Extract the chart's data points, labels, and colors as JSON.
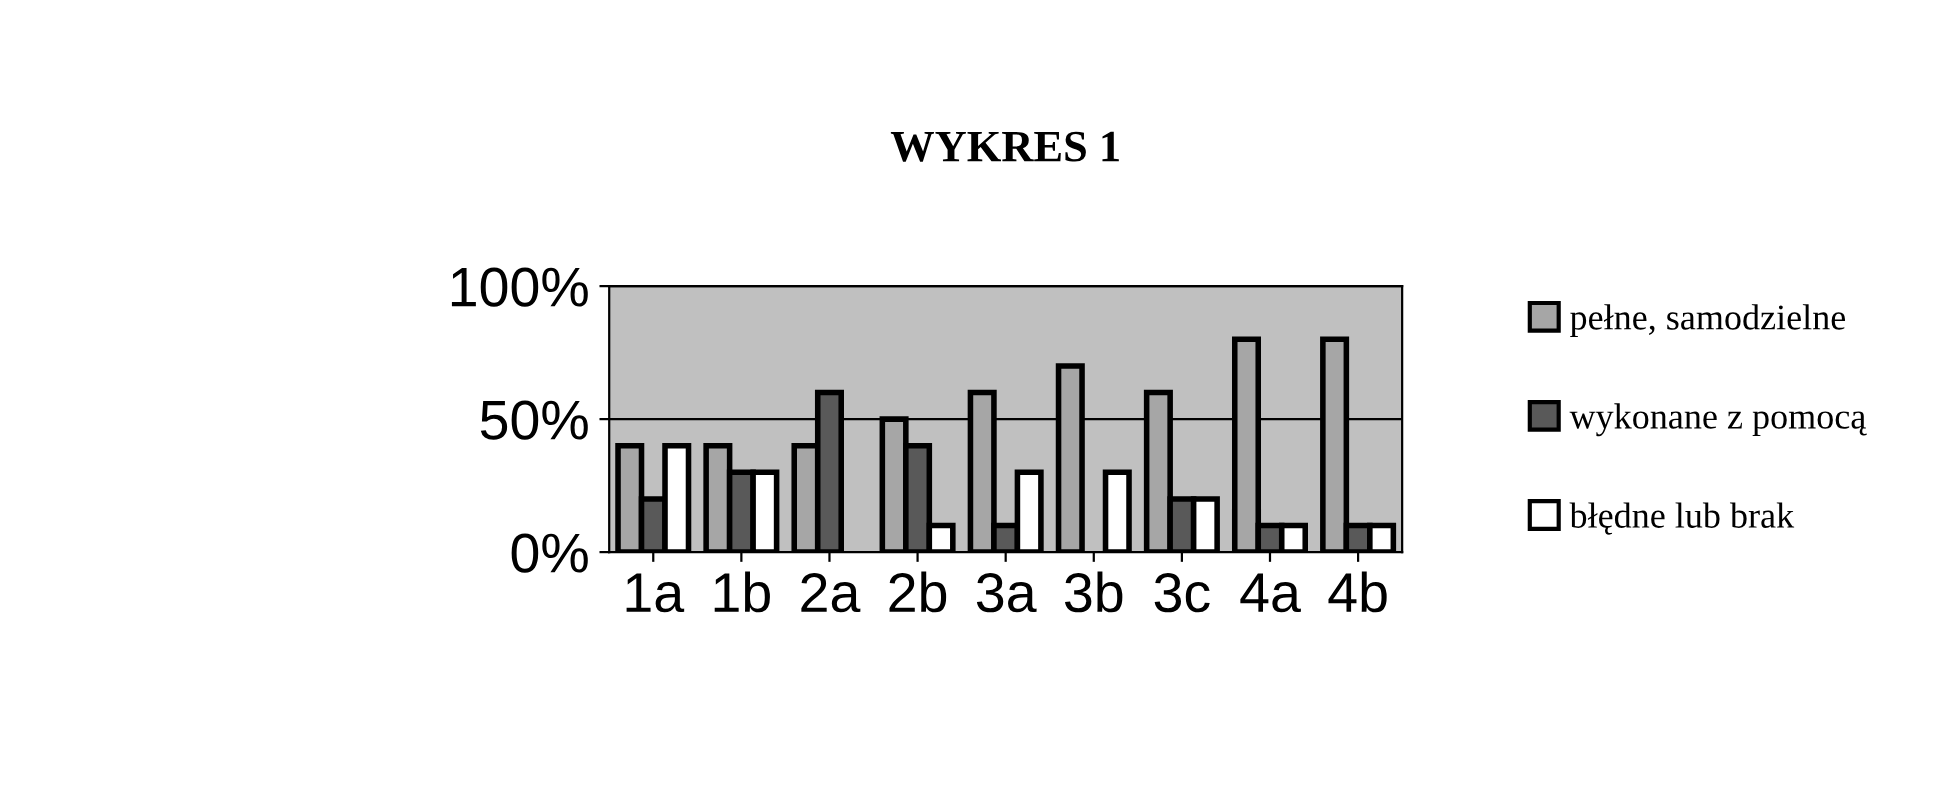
{
  "chart_data": {
    "type": "bar",
    "title": "WYKRES 1",
    "categories": [
      "1a",
      "1b",
      "2a",
      "2b",
      "3a",
      "3b",
      "3c",
      "4a",
      "4b"
    ],
    "series": [
      {
        "name": "pełne, samodzielne",
        "color": "#a6a6a6",
        "values": [
          40,
          40,
          40,
          50,
          60,
          70,
          60,
          80,
          80
        ]
      },
      {
        "name": "wykonane z pomocą",
        "color": "#595959",
        "values": [
          20,
          30,
          60,
          40,
          10,
          0,
          20,
          10,
          10
        ]
      },
      {
        "name": "błędne lub brak",
        "color": "#ffffff",
        "values": [
          40,
          30,
          0,
          10,
          30,
          30,
          20,
          10,
          10
        ]
      }
    ],
    "ylim": [
      0,
      100
    ],
    "yticks": [
      {
        "value": 0,
        "label": "0%"
      },
      {
        "value": 50,
        "label": "50%"
      },
      {
        "value": 100,
        "label": "100%"
      }
    ],
    "grid": "y",
    "legend": "right"
  }
}
